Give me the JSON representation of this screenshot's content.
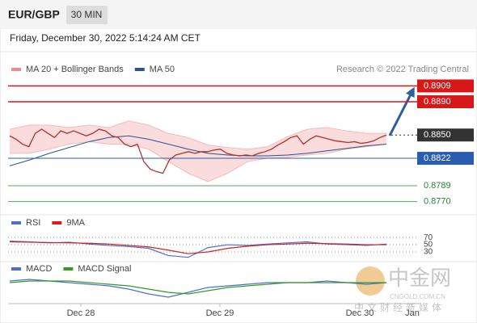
{
  "header": {
    "symbol": "EUR/GBP",
    "interval": "30 MIN",
    "timestamp": "Friday, December 30, 2022 5:14:24 AM CET"
  },
  "chart_data": [
    {
      "type": "line",
      "source": "Research © 2022 Trading Central",
      "ylim": [
        0.8758,
        0.8923
      ],
      "price": [
        0.8849,
        0.8845,
        0.8839,
        0.8836,
        0.8852,
        0.8857,
        0.8852,
        0.8847,
        0.8855,
        0.8852,
        0.8855,
        0.8852,
        0.8849,
        0.8852,
        0.8857,
        0.8855,
        0.8849,
        0.8847,
        0.8839,
        0.8836,
        0.8839,
        0.8818,
        0.8809,
        0.8806,
        0.8804,
        0.882,
        0.8826,
        0.8828,
        0.883,
        0.8828,
        0.883,
        0.883,
        0.8832,
        0.8833,
        0.8828,
        0.8826,
        0.8825,
        0.8826,
        0.8825,
        0.8828,
        0.883,
        0.8833,
        0.8838,
        0.8842,
        0.8847,
        0.8849,
        0.8839,
        0.8845,
        0.8849,
        0.8847,
        0.8845,
        0.8843,
        0.8842,
        0.8841,
        0.8842,
        0.884,
        0.8841,
        0.8843,
        0.8847,
        0.885
      ],
      "price_color": "#b03030",
      "bollinger": {
        "name": "MA 20 + Bollinger Bands",
        "color": "#f08a8a",
        "upper": [
          0.8857,
          0.8862,
          0.8862,
          0.8859,
          0.8862,
          0.8859,
          0.8867,
          0.8862,
          0.8852,
          0.8847,
          0.8838,
          0.8835,
          0.8833,
          0.8836,
          0.8848,
          0.8857,
          0.8859,
          0.8855,
          0.8852,
          0.8852
        ],
        "lower": [
          0.8828,
          0.8828,
          0.8833,
          0.8839,
          0.8842,
          0.8839,
          0.8839,
          0.8833,
          0.8818,
          0.8804,
          0.8794,
          0.8804,
          0.8818,
          0.8822,
          0.8823,
          0.8826,
          0.8828,
          0.8833,
          0.8836,
          0.8839
        ]
      },
      "ma50": {
        "name": "MA 50",
        "color": "#2c5290",
        "values": [
          0.8813,
          0.882,
          0.8828,
          0.8835,
          0.8842,
          0.8847,
          0.8849,
          0.8845,
          0.8839,
          0.8833,
          0.8828,
          0.8826,
          0.8825,
          0.8825,
          0.8826,
          0.8828,
          0.8831,
          0.8834,
          0.8837,
          0.8839
        ]
      },
      "levels": [
        0.8909,
        {
          "value": 0.889,
          "label": "0.8890"
        },
        {
          "value": 0.885,
          "label": "0.8850"
        },
        0.8822,
        0.8789,
        {
          "value": 0.877,
          "label": "0.8770"
        }
      ],
      "level_styles": [
        "resistance",
        "resistance",
        "current",
        "pivot",
        "support",
        "support"
      ]
    },
    {
      "type": "line",
      "ylim": [
        12,
        95
      ],
      "yticks": [
        70,
        50,
        30
      ],
      "series": [
        {
          "name": "RSI",
          "color": "#4a6fd1",
          "values": [
            60,
            58,
            55,
            57,
            52,
            48,
            45,
            40,
            20,
            15,
            42,
            50,
            48,
            52,
            55,
            58,
            52,
            50,
            48,
            52
          ]
        },
        {
          "name": "9MA",
          "color": "#d22020",
          "values": [
            58,
            57,
            56,
            55,
            54,
            52,
            48,
            44,
            35,
            25,
            30,
            40,
            46,
            50,
            52,
            54,
            53,
            52,
            50,
            50
          ]
        }
      ]
    },
    {
      "type": "line",
      "ylim": [
        -0.001,
        0.0006
      ],
      "series": [
        {
          "name": "MACD",
          "color": "#4a6fd1",
          "values": [
            0.0002,
            0.0003,
            0.0002,
            0.0001,
            0,
            -0.0001,
            -0.0003,
            -0.0006,
            -0.0008,
            -0.0005,
            -0.0002,
            -0.0001,
            0,
            0.0001,
            0.0001,
            0.0001,
            0.0002,
            0.0001,
            0,
            0.0001
          ]
        },
        {
          "name": "MACD Signal",
          "color": "#3a9a20",
          "values": [
            0.0001,
            0.0002,
            0.0002,
            0.0002,
            0.0001,
            0,
            -0.0001,
            -0.0003,
            -0.0005,
            -0.0006,
            -0.0004,
            -0.0002,
            -0.0001,
            0,
            0.0001,
            0.0001,
            0.0001,
            0.0001,
            0.0001,
            0.0001
          ]
        }
      ]
    }
  ],
  "x_labels": [
    "Dec 28",
    "Dec 29",
    "Dec 30",
    "Jan"
  ],
  "watermark": {
    "name": "中金网",
    "domain": "CNGOLD.COM.CN",
    "slogan": "中文财经新媒体"
  }
}
